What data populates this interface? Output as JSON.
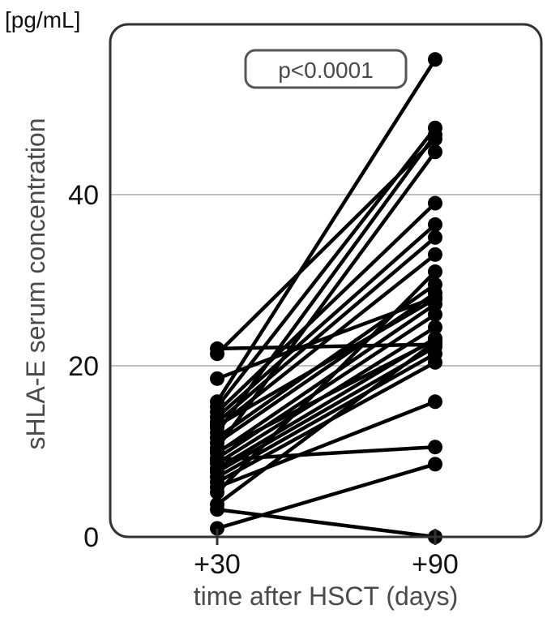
{
  "chart_data": {
    "type": "scatter",
    "subtype": "paired-dot",
    "ylabel": "sHLA-E serum concentration",
    "yunit": "[pg/mL]",
    "xlabel": "time after HSCT (days)",
    "categories": [
      "+30",
      "+90"
    ],
    "yticks": [
      0,
      20,
      40
    ],
    "ylim": [
      0,
      57
    ],
    "grid": {
      "horizontal": true,
      "lines_at": [
        20,
        40
      ]
    },
    "annotation": "p<0.0001",
    "pairs": [
      [
        21.4,
        46.5
      ],
      [
        22.0,
        22.5
      ],
      [
        18.5,
        28.0
      ],
      [
        15.8,
        55.8
      ],
      [
        15.2,
        47.8
      ],
      [
        14.6,
        39.0
      ],
      [
        14.0,
        36.5
      ],
      [
        13.4,
        35.0
      ],
      [
        12.8,
        33.0
      ],
      [
        12.2,
        47.0
      ],
      [
        11.6,
        29.5
      ],
      [
        11.0,
        28.5
      ],
      [
        10.4,
        45.0
      ],
      [
        9.8,
        27.2
      ],
      [
        9.2,
        26.0
      ],
      [
        8.6,
        24.5
      ],
      [
        8.0,
        23.2
      ],
      [
        7.6,
        22.2
      ],
      [
        7.0,
        21.4
      ],
      [
        6.4,
        20.4
      ],
      [
        5.8,
        15.8
      ],
      [
        5.2,
        31.0
      ],
      [
        9.0,
        10.5
      ],
      [
        1.0,
        8.5
      ],
      [
        3.2,
        0.0
      ],
      [
        3.8,
        22.8
      ],
      [
        13.0,
        27.8
      ],
      [
        10.0,
        23.0
      ]
    ]
  }
}
